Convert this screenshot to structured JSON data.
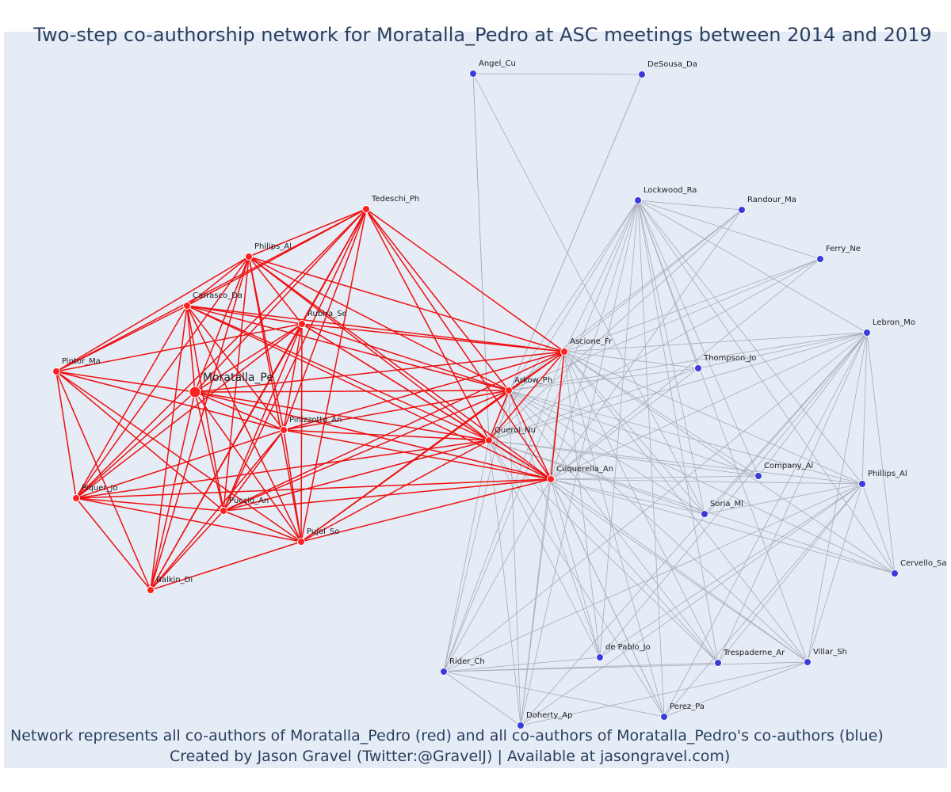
{
  "title": "Two-step co-authorship network for Moratalla_Pedro at ASC meetings between 2014 and 2019",
  "captions": {
    "line1": "Network represents all co-authors of Moratalla_Pedro (red) and all co-authors of Moratalla_Pedro's co-authors (blue)",
    "line2": "Created by Jason Gravel (Twitter:@GravelJ) | Available at jasongravel.com)"
  },
  "colors": {
    "background": "#e5ecf6",
    "red_node": "#ff2020",
    "red_edge": "#ee1111",
    "blue_node": "#3b3bdc",
    "gray_edge": "#a8acb8",
    "text": "#2a3f5f"
  },
  "legend": {
    "red": "co-authors of Moratalla_Pedro",
    "blue": "co-authors of Moratalla_Pedro's co-authors"
  },
  "nodes": {
    "red": [
      "Moratalla_Pe",
      "Tedeschi_Ph",
      "Philips_Al",
      "Carrasco_Da",
      "Rubira_Se",
      "Pintor_Ma",
      "Pinizzotto_An",
      "Piquer_Jo",
      "Puccio_An",
      "Pujol_So",
      "Balkin_Di",
      "Ascione_Fr",
      "Arkow_Ph",
      "Querol_Nu",
      "Cuquerella_An"
    ],
    "blue": [
      "Angel_Cu",
      "DeSousa_Da",
      "Lockwood_Ra",
      "Randour_Ma",
      "Ferry_Ne",
      "Lebron_Mo",
      "Thompson_Jo",
      "Company_Al",
      "Phillips_Al",
      "Soria_Ml",
      "Cervello_Sa",
      "Rider_Ch",
      "de Pablo_Jo",
      "Trespaderne_Ar",
      "Villar_Sh",
      "Doherty_Ap",
      "Perez_Pa"
    ]
  }
}
